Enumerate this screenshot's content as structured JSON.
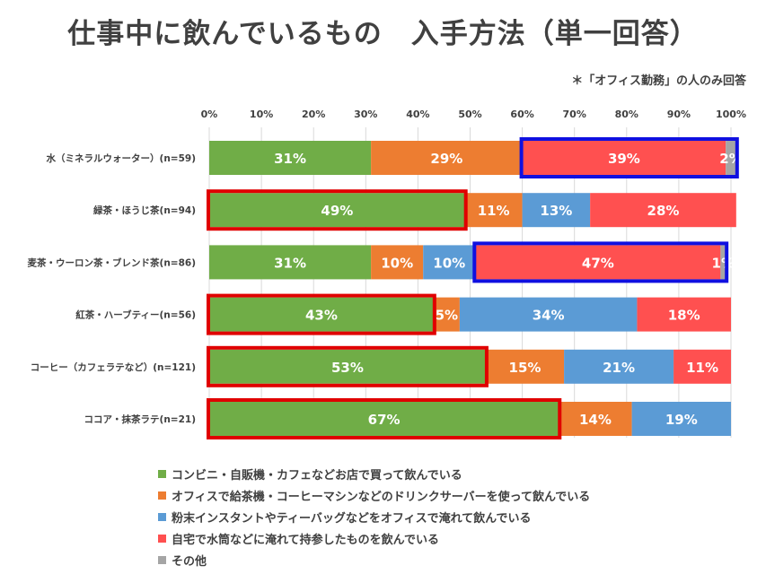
{
  "title": "仕事中に飲んでいるもの　入手方法（単一回答）",
  "note": "＊「オフィス勤務」の人のみ回答",
  "colors": {
    "convenience": "#70ad47",
    "office": "#ed7d31",
    "instant": "#5b9bd5",
    "home": "#ff5050",
    "other": "#a5a5a5",
    "highlight_red": "#e00000",
    "highlight_blue": "#1010e0"
  },
  "legend": [
    {
      "label": "コンビニ・自販機・カフェなどお店で買って飲んでいる",
      "color": "#70ad47"
    },
    {
      "label": "オフィスで給茶機・コーヒーマシンなどのドリンクサーバーを使って飲んでいる",
      "color": "#ed7d31"
    },
    {
      "label": "粉末インスタントやティーバッグなどをオフィスで淹れて飲んでいる",
      "color": "#5b9bd5"
    },
    {
      "label": "自宅で水筒などに淹れて持参したものを飲んでいる",
      "color": "#ff5050"
    },
    {
      "label": "その他",
      "color": "#a5a5a5"
    }
  ],
  "chart_data": {
    "type": "bar",
    "orientation": "horizontal",
    "stacked": true,
    "title": "仕事中に飲んでいるもの　入手方法（単一回答）",
    "xlim": [
      0,
      100
    ],
    "x_ticks": [
      "0%",
      "10%",
      "20%",
      "30%",
      "40%",
      "50%",
      "60%",
      "70%",
      "80%",
      "90%",
      "100%"
    ],
    "grid": true,
    "legend_position": "bottom",
    "categories": [
      "水（ミネラルウォーター）(n=59)",
      "緑茶・ほうじ茶(n=94)",
      "麦茶・ウーロン茶・ブレンド茶(n=86)",
      "紅茶・ハーブティー(n=56)",
      "コーヒー（カフェラテなど）(n=121)",
      "ココア・抹茶ラテ(n=21)"
    ],
    "series": [
      {
        "name": "コンビニ・自販機・カフェなどお店で買って飲んでいる",
        "values": [
          31,
          49,
          31,
          43,
          53,
          67
        ],
        "labels": [
          "31%",
          "49%",
          "31%",
          "43%",
          "53%",
          "67%"
        ]
      },
      {
        "name": "オフィスで給茶機・コーヒーマシンなどのドリンクサーバーを使って飲んでいる",
        "values": [
          29,
          11,
          10,
          5,
          15,
          14
        ],
        "labels": [
          "29%",
          "11%",
          "10%",
          "5%",
          "15%",
          "14%"
        ]
      },
      {
        "name": "粉末インスタントやティーバッグなどをオフィスで淹れて飲んでいる",
        "values": [
          0,
          13,
          10,
          34,
          21,
          19
        ],
        "labels": [
          "",
          "13%",
          "10%",
          "34%",
          "21%",
          "19%"
        ]
      },
      {
        "name": "自宅で水筒などに淹れて持参したものを飲んでいる",
        "values": [
          39,
          28,
          47,
          18,
          11,
          0
        ],
        "labels": [
          "39%",
          "28%",
          "47%",
          "18%",
          "11%",
          ""
        ]
      },
      {
        "name": "その他",
        "values": [
          2,
          0,
          1,
          0,
          0,
          0
        ],
        "labels": [
          "2%",
          "",
          "1%",
          "",
          "",
          ""
        ]
      }
    ],
    "highlights": [
      {
        "row": 0,
        "from_series": 3,
        "to_series": 4,
        "color": "blue"
      },
      {
        "row": 1,
        "from_series": 0,
        "to_series": 0,
        "color": "red"
      },
      {
        "row": 2,
        "from_series": 3,
        "to_series": 4,
        "color": "blue"
      },
      {
        "row": 3,
        "from_series": 0,
        "to_series": 0,
        "color": "red"
      },
      {
        "row": 4,
        "from_series": 0,
        "to_series": 0,
        "color": "red"
      },
      {
        "row": 5,
        "from_series": 0,
        "to_series": 0,
        "color": "red"
      }
    ]
  }
}
